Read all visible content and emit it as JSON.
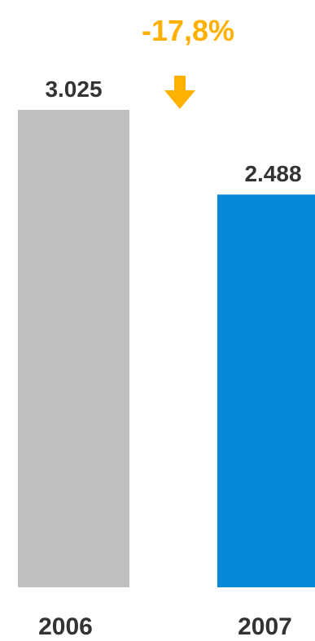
{
  "chart_data": {
    "type": "bar",
    "categories": [
      "2006",
      "2007"
    ],
    "values": [
      3025,
      2488
    ],
    "value_labels": [
      "3.025",
      "2.488"
    ],
    "bar_colors": [
      "#c0c0c0",
      "#0589d6"
    ],
    "ylim": [
      0,
      3025
    ],
    "grid": false,
    "legend": "none",
    "annotation": {
      "text": "-17,8%",
      "color": "#ffb000",
      "icon": "arrow-down-icon"
    }
  }
}
